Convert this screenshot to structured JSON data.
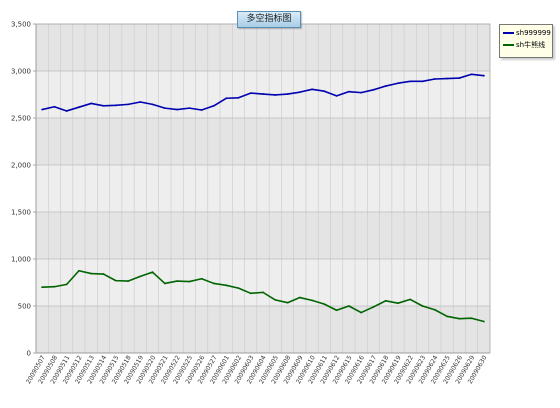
{
  "chart_data": {
    "type": "line",
    "title": "多空指标图",
    "ylim": [
      0,
      3500
    ],
    "yticks": [
      "0",
      "500",
      "1,000",
      "1,500",
      "2,000",
      "2,500",
      "3,000",
      "3,500"
    ],
    "ytick_values": [
      0,
      500,
      1000,
      1500,
      2000,
      2500,
      3000,
      3500
    ],
    "grid": true,
    "legend_position": "top-right",
    "x": [
      "20090507",
      "20090508",
      "20090511",
      "20090512",
      "20090513",
      "20090514",
      "20090515",
      "20090518",
      "20090519",
      "20090520",
      "20090521",
      "20090522",
      "20090525",
      "20090526",
      "20090527",
      "20090601",
      "20090602",
      "20090603",
      "20090604",
      "20090605",
      "20090608",
      "20090609",
      "20090610",
      "20090611",
      "20090612",
      "20090615",
      "20090616",
      "20090617",
      "20090618",
      "20090619",
      "20090622",
      "20090623",
      "20090624",
      "20090625",
      "20090626",
      "20090629",
      "20090630"
    ],
    "series": [
      {
        "name": "sh999999",
        "color": "#0000b0",
        "values": [
          2590,
          2620,
          2575,
          2615,
          2655,
          2630,
          2635,
          2645,
          2670,
          2645,
          2605,
          2590,
          2605,
          2585,
          2630,
          2710,
          2715,
          2765,
          2755,
          2745,
          2755,
          2775,
          2805,
          2785,
          2735,
          2780,
          2770,
          2800,
          2840,
          2870,
          2890,
          2890,
          2915,
          2920,
          2925,
          2965,
          2950
        ]
      },
      {
        "name": "sh牛熊线",
        "color": "#006400",
        "values": [
          700,
          705,
          730,
          875,
          845,
          840,
          770,
          765,
          815,
          860,
          740,
          765,
          760,
          790,
          740,
          720,
          690,
          635,
          645,
          565,
          535,
          590,
          560,
          520,
          455,
          500,
          430,
          490,
          555,
          530,
          570,
          500,
          460,
          390,
          365,
          370,
          335
        ]
      }
    ]
  }
}
